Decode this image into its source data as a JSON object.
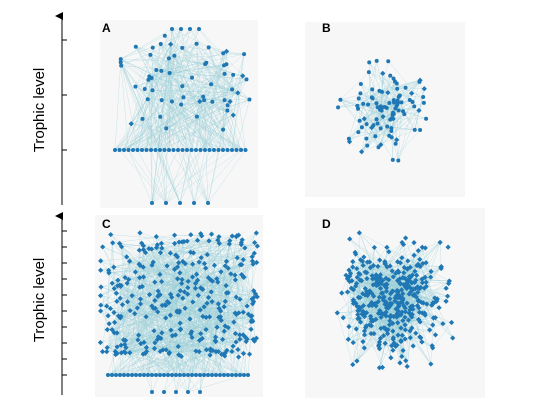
{
  "top_axis": {
    "label": "Trophic level"
  },
  "bottom_axis": {
    "label": "Trophic level"
  },
  "panels": [
    {
      "label": "A"
    },
    {
      "label": "B"
    },
    {
      "label": "C"
    },
    {
      "label": "D"
    }
  ]
}
